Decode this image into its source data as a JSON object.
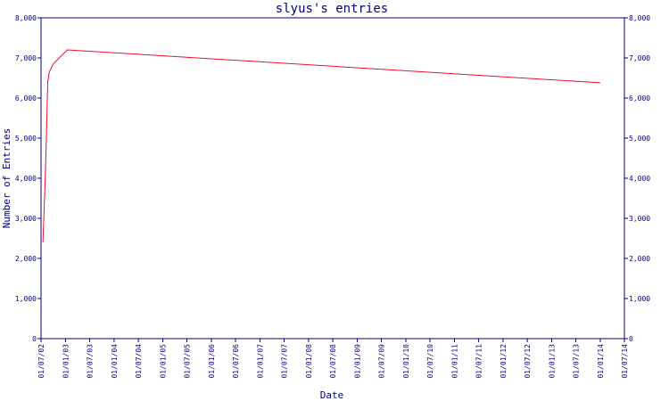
{
  "chart_data": {
    "type": "line",
    "title": "slyus's entries",
    "xlabel": "Date",
    "ylabel": "Number of Entries",
    "ylim": [
      0,
      8000
    ],
    "y_ticks": [
      "0",
      "1,000",
      "2,000",
      "3,000",
      "4,000",
      "5,000",
      "6,000",
      "7,000",
      "8,000"
    ],
    "y_tick_values": [
      0,
      1000,
      2000,
      3000,
      4000,
      5000,
      6000,
      7000,
      8000
    ],
    "x_ticks": [
      "01/07/02",
      "01/01/03",
      "01/07/03",
      "01/01/04",
      "01/07/04",
      "01/01/05",
      "01/07/05",
      "01/01/06",
      "01/07/06",
      "01/01/07",
      "01/07/07",
      "01/01/08",
      "01/07/08",
      "01/01/09",
      "01/07/09",
      "01/01/10",
      "01/07/10",
      "01/01/11",
      "01/07/11",
      "01/01/12",
      "01/07/12",
      "01/01/13",
      "01/07/13",
      "01/01/14",
      "01/07/14"
    ],
    "grid": false,
    "right_axis": true,
    "line_color": "#e8102a",
    "axis_color": "#000080",
    "series": [
      {
        "x": [
          "2002-07-15",
          "2002-08-01",
          "2002-08-10",
          "2002-08-20",
          "2002-09-01",
          "2002-10-01",
          "2002-11-15",
          "2003-01-15",
          "2014-01-01"
        ],
        "values": [
          2400,
          3900,
          5000,
          6400,
          6650,
          6850,
          7000,
          7200,
          6380
        ]
      }
    ]
  }
}
